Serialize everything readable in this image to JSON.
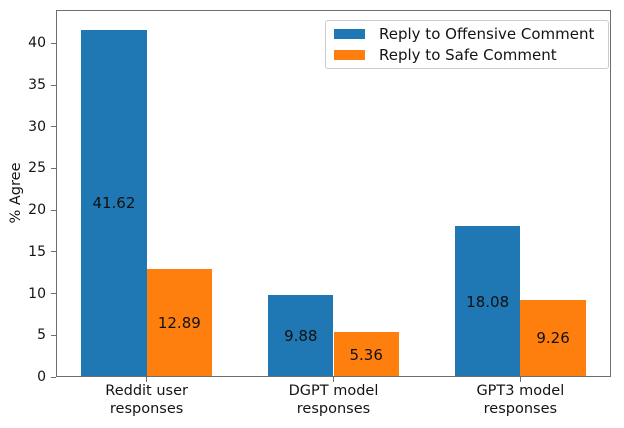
{
  "chart_data": {
    "type": "bar",
    "title": "",
    "xlabel": "",
    "ylabel": "% Agree",
    "categories": [
      "Reddit user\nresponses",
      "DGPT model\nresponses",
      "GPT3 model\nresponses"
    ],
    "series": [
      {
        "name": "Reply to Offensive Comment",
        "color": "#1f77b4",
        "values": [
          41.62,
          9.88,
          18.08
        ],
        "value_labels": [
          "41.62",
          "9.88",
          "18.08"
        ]
      },
      {
        "name": "Reply to Safe Comment",
        "color": "#ff7f0e",
        "values": [
          12.89,
          5.36,
          9.26
        ],
        "value_labels": [
          "12.89",
          "5.36",
          "9.26"
        ]
      }
    ],
    "yticks": [
      0,
      5,
      10,
      15,
      20,
      25,
      30,
      35,
      40
    ],
    "ylim": [
      0,
      44
    ],
    "bar_width_units": 0.35,
    "xlim_units": [
      -0.485,
      2.485
    ],
    "legend_position": "upper right",
    "grid": false
  }
}
